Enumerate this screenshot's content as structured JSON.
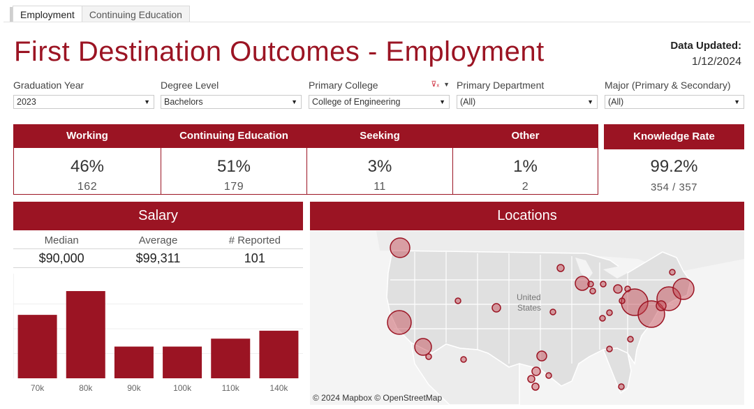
{
  "tabs": [
    {
      "label": "Employment",
      "active": true
    },
    {
      "label": "Continuing Education",
      "active": false
    }
  ],
  "title": "First Destination Outcomes - Employment",
  "updated": {
    "label": "Data Updated:",
    "value": "1/12/2024"
  },
  "filters": {
    "graduation_year": {
      "label": "Graduation Year",
      "value": "2023"
    },
    "degree_level": {
      "label": "Degree Level",
      "value": "Bachelors"
    },
    "primary_college": {
      "label": "Primary College",
      "value": "College of Engineering"
    },
    "primary_department": {
      "label": "Primary Department",
      "value": "(All)"
    },
    "major": {
      "label": "Major (Primary & Secondary)",
      "value": "(All)"
    }
  },
  "kpis": [
    {
      "label": "Working",
      "percent": "46%",
      "count": "162"
    },
    {
      "label": "Continuing Education",
      "percent": "51%",
      "count": "179"
    },
    {
      "label": "Seeking",
      "percent": "3%",
      "count": "11"
    },
    {
      "label": "Other",
      "percent": "1%",
      "count": "2"
    }
  ],
  "knowledge_rate": {
    "label": "Knowledge Rate",
    "percent": "99.2%",
    "count": "354 / 357"
  },
  "salary": {
    "title": "Salary",
    "median_label": "Median",
    "median": "$90,000",
    "average_label": "Average",
    "average": "$99,311",
    "reported_label": "# Reported",
    "reported": "101"
  },
  "chart_data": {
    "type": "bar",
    "title": "Salary",
    "categories": [
      "70k",
      "80k",
      "90k",
      "100k",
      "110k",
      "140k"
    ],
    "values": [
      16,
      22,
      8,
      8,
      10,
      12
    ],
    "ylim": [
      0,
      25
    ],
    "xlabel": "",
    "ylabel": "",
    "color": "#9b1423"
  },
  "locations": {
    "title": "Locations",
    "country_label_1": "United",
    "country_label_2": "States",
    "credit": "© 2024 Mapbox  © OpenStreetMap"
  },
  "colors": {
    "accent": "#9b1423",
    "bubble": "#c0404c"
  }
}
